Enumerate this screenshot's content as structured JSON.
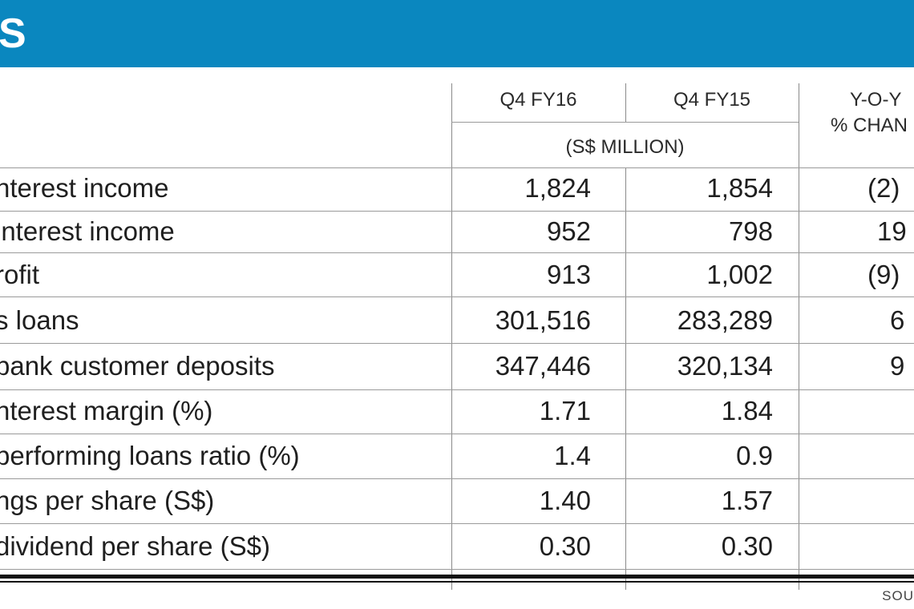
{
  "banner": {
    "title": "S"
  },
  "header": {
    "col1": "Q4 FY16",
    "col2": "Q4 FY15",
    "units": "(S$ MILLION)",
    "col3_line1": "Y-O-Y",
    "col3_line2": "% CHAN"
  },
  "rows": [
    {
      "label": "nterest income",
      "q4fy16": "1,824",
      "q4fy15": "1,854",
      "yoy": "(2)"
    },
    {
      "label": "interest income",
      "q4fy16": "952",
      "q4fy15": "798",
      "yoy": "19"
    },
    {
      "label": "rofit",
      "q4fy16": "913",
      "q4fy15": "1,002",
      "yoy": "(9)"
    },
    {
      "label": "s loans",
      "q4fy16": "301,516",
      "q4fy15": "283,289",
      "yoy": "6"
    },
    {
      "label": "bank customer deposits",
      "q4fy16": "347,446",
      "q4fy15": "320,134",
      "yoy": "9"
    },
    {
      "label": "nterest margin (%)",
      "q4fy16": "1.71",
      "q4fy15": "1.84",
      "yoy": ""
    },
    {
      "label": "performing loans ratio (%)",
      "q4fy16": "1.4",
      "q4fy15": "0.9",
      "yoy": ""
    },
    {
      "label": "ngs per share (S$)",
      "q4fy16": "1.40",
      "q4fy15": "1.57",
      "yoy": ""
    },
    {
      "label": "dividend per share (S$)",
      "q4fy16": "0.30",
      "q4fy15": "0.30",
      "yoy": ""
    }
  ],
  "footer": {
    "source": "SOU"
  },
  "colors": {
    "banner": "#0a87bf"
  }
}
